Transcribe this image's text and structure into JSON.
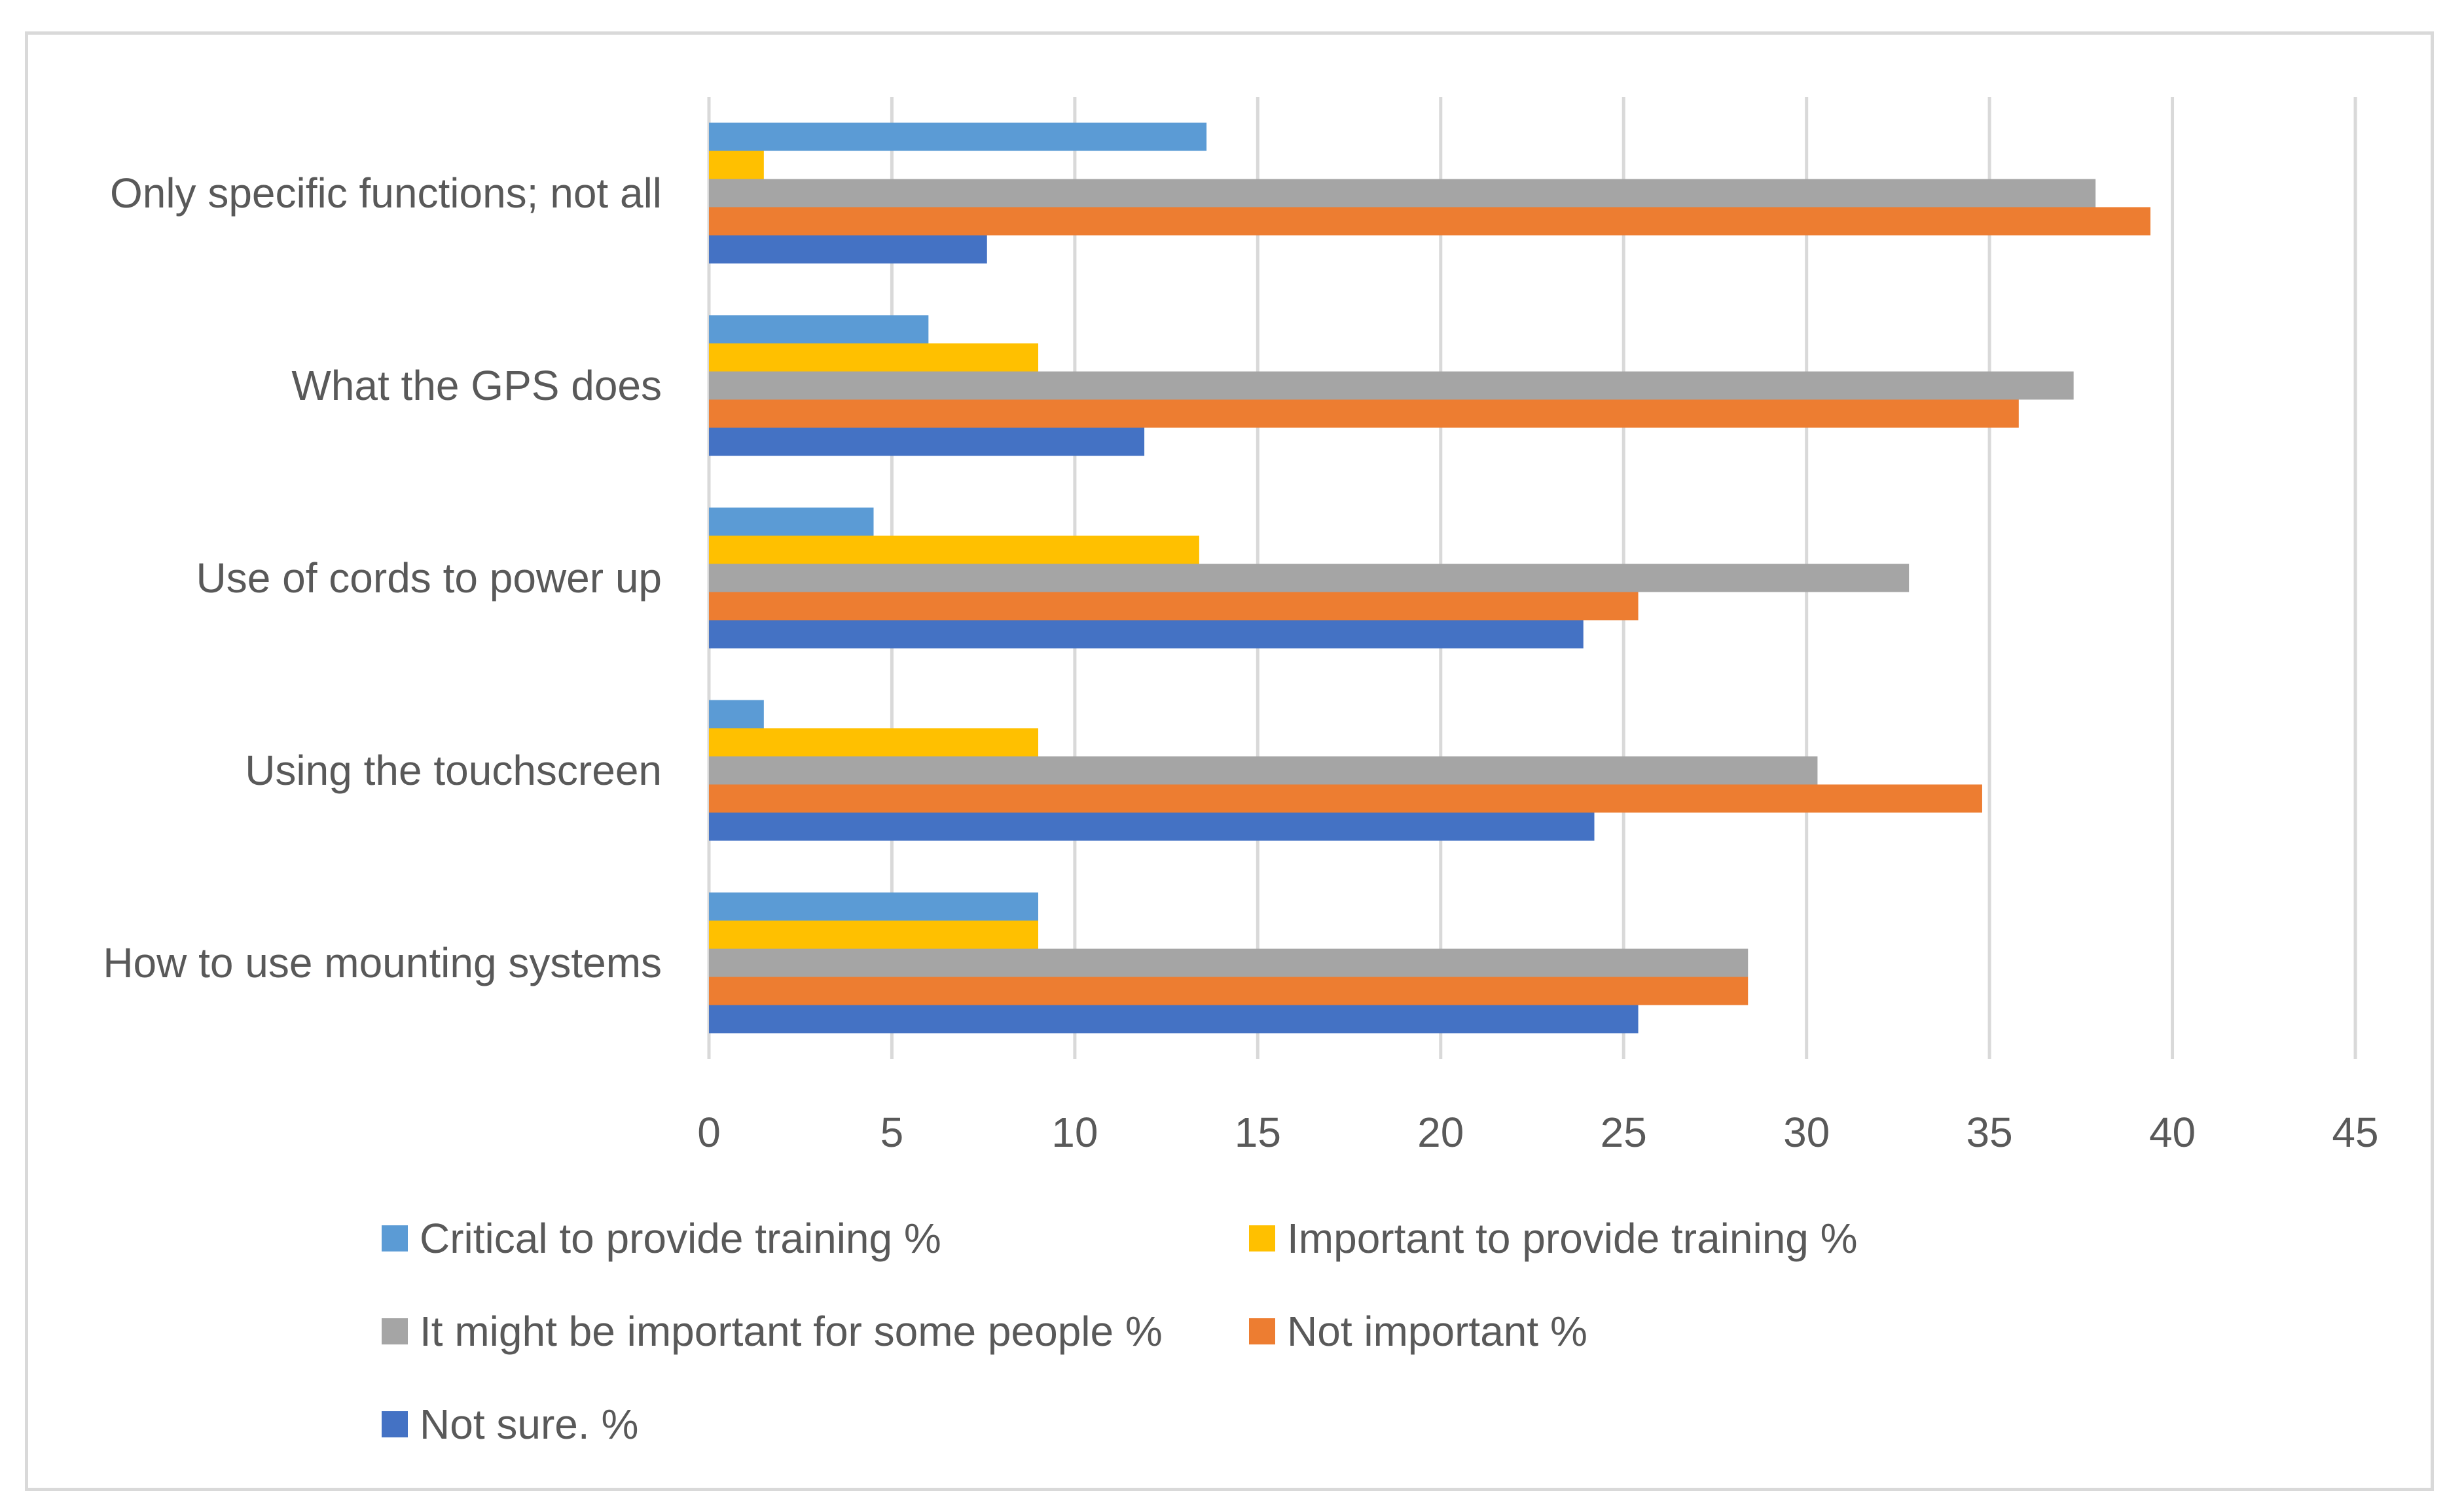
{
  "chart_data": {
    "type": "bar",
    "orientation": "horizontal",
    "title": "",
    "xlabel": "",
    "ylabel": "",
    "xlim": [
      0,
      45
    ],
    "xticks": [
      "0",
      "5",
      "10",
      "15",
      "20",
      "25",
      "30",
      "35",
      "40",
      "45"
    ],
    "grid": "vertical",
    "legend_position": "bottom",
    "categories": [
      "Only specific functions; not all",
      "What the GPS does",
      "Use of cords to power up",
      "Using the touchscreen",
      "How to use mounting systems"
    ],
    "series": [
      {
        "name": "Critical to provide training %",
        "color": "#5b9bd5",
        "values": [
          13.6,
          6.0,
          4.5,
          1.5,
          9.0
        ]
      },
      {
        "name": "Important to provide training %",
        "color": "#ffc000",
        "values": [
          1.5,
          9.0,
          13.4,
          9.0,
          9.0
        ]
      },
      {
        "name": "It might be important for some people %",
        "color": "#a5a5a5",
        "values": [
          37.9,
          37.3,
          32.8,
          30.3,
          28.4
        ]
      },
      {
        "name": "Not important %",
        "color": "#ed7d31",
        "values": [
          39.4,
          35.8,
          25.4,
          34.8,
          28.4
        ]
      },
      {
        "name": "Not sure. %",
        "color": "#4472c4",
        "values": [
          7.6,
          11.9,
          23.9,
          24.2,
          25.4
        ]
      }
    ]
  }
}
